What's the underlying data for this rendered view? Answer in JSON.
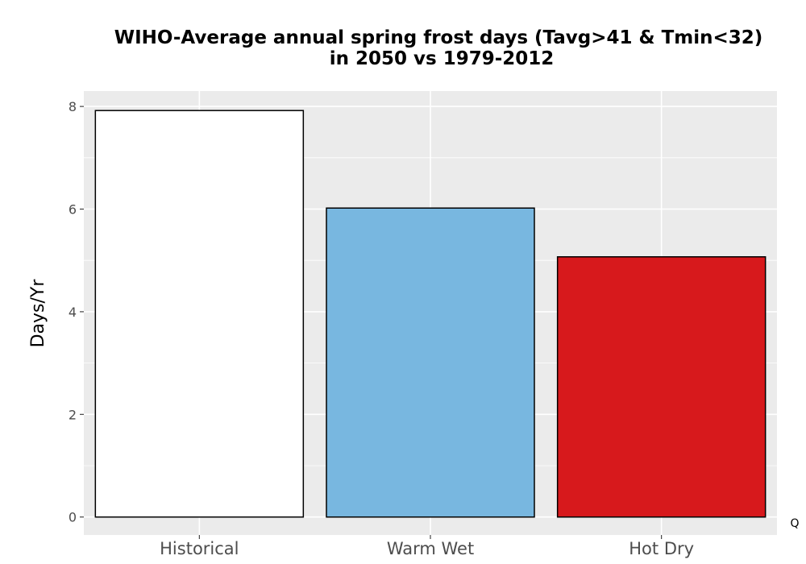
{
  "chart_data": {
    "type": "bar",
    "title": "WIHO-Average annual spring frost days (Tavg>41 & Tmin<32)",
    "subtitle": "in 2050 vs 1979-2012",
    "xlabel": "",
    "ylabel": "Days/Yr",
    "categories": [
      "Historical",
      "Warm Wet",
      "Hot Dry"
    ],
    "values": [
      7.92,
      6.02,
      5.07
    ],
    "colors": [
      "#ffffff",
      "#78b7e0",
      "#d7191c"
    ],
    "bar_outline": "#000000",
    "panel_background": "#ebebeb",
    "grid_color": "#ffffff",
    "ylim": [
      -0.35,
      8.3
    ],
    "yticks": [
      0,
      2,
      4,
      6,
      8
    ],
    "ytick_labels": [
      "0",
      "2",
      "4",
      "6",
      "8"
    ],
    "grid": true,
    "legend": "none",
    "corner_label": "Q"
  }
}
